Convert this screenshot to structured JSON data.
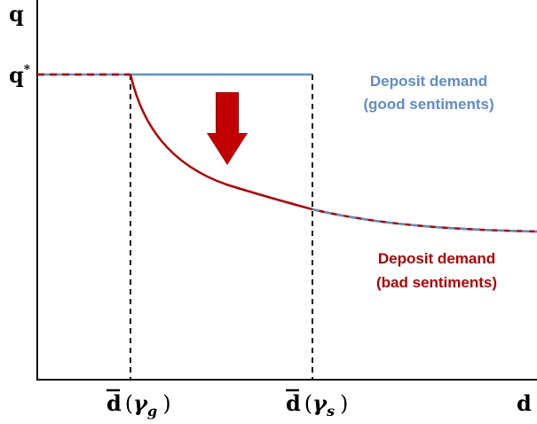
{
  "axes": {
    "y_label": "q",
    "x_label": "d",
    "q_star": {
      "base": "q",
      "sup": "*"
    }
  },
  "x_markers": [
    {
      "base": "d",
      "open": "(",
      "symbol": "γ",
      "sub": "g",
      "close": ")"
    },
    {
      "base": "d",
      "open": "(",
      "symbol": "γ",
      "sub": "s",
      "close": ")"
    }
  ],
  "curves": [
    {
      "lines": [
        "Deposit demand",
        "(good sentiments)"
      ]
    },
    {
      "lines": [
        "Deposit demand",
        "(bad sentiments)"
      ]
    }
  ]
}
